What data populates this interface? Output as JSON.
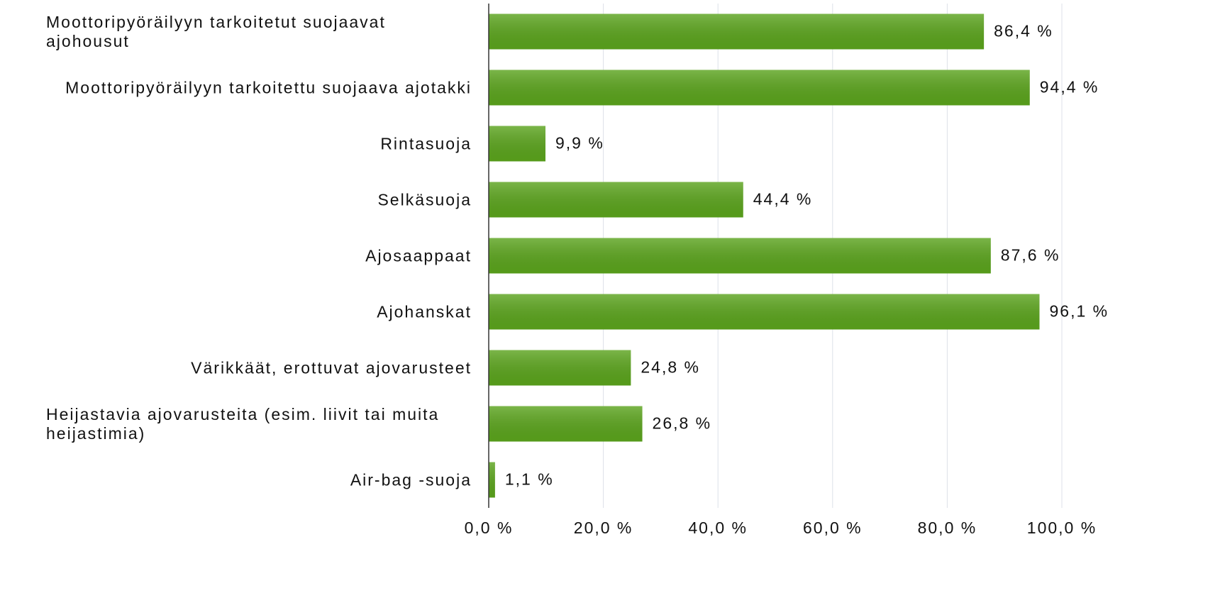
{
  "chart_data": {
    "type": "bar",
    "orientation": "horizontal",
    "categories": [
      "Moottoripyöräilyyn tarkoitetut suojaavat ajohousut",
      "Moottoripyöräilyyn tarkoitettu suojaava ajotakki",
      "Rintasuoja",
      "Selkäsuoja",
      "Ajosaappaat",
      "Ajohanskat",
      "Värikkäät, erottuvat ajovarusteet",
      "Heijastavia ajovarusteita (esim. liivit tai muita heijastimia)",
      "Air-bag -suoja"
    ],
    "values": [
      86.4,
      94.4,
      9.9,
      44.4,
      87.6,
      96.1,
      24.8,
      26.8,
      1.1
    ],
    "value_labels": [
      "86,4 %",
      "94,4 %",
      "9,9 %",
      "44,4 %",
      "87,6 %",
      "96,1 %",
      "24,8 %",
      "26,8 %",
      "1,1 %"
    ],
    "color": "#5aa31c",
    "xlim": [
      0,
      100
    ],
    "xticks": [
      {
        "value": 0,
        "label": "0,0 %"
      },
      {
        "value": 20,
        "label": "20,0 %"
      },
      {
        "value": 40,
        "label": "40,0 %"
      },
      {
        "value": 60,
        "label": "60,0 %"
      },
      {
        "value": 80,
        "label": "80,0 %"
      },
      {
        "value": 100,
        "label": "100,0 %"
      }
    ],
    "grid": true
  }
}
